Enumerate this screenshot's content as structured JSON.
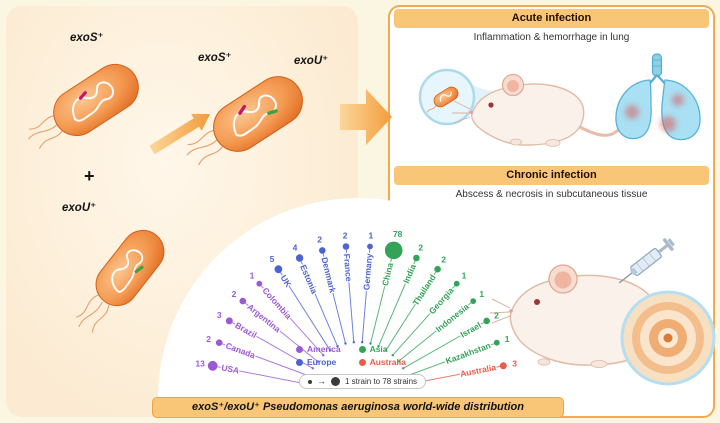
{
  "left_panel": {
    "bact1_label": "exoS⁺",
    "plus_sign": "+",
    "bact2_label": "exoU⁺",
    "merged_label_left": "exoS⁺",
    "merged_label_right": "exoU⁺"
  },
  "right_panel": {
    "acute": {
      "header": "Acute infection",
      "caption": "Inflammation & hemorrhage in lung"
    },
    "chronic": {
      "header": "Chronic infection",
      "caption": "Abscess & necrosis in subcutaneous tissue"
    }
  },
  "distribution": {
    "banner": "exoS⁺/exoU⁺ Pseudomonas aeruginosa world-wide distribution",
    "size_legend": "1 strain to 78 strains"
  },
  "chart_data": {
    "type": "radial-fan",
    "title": "exoS⁺/exoU⁺ Pseudomonas aeruginosa world-wide distribution",
    "size_note": "1 strain to 78 strains",
    "value_range": [
      1,
      78
    ],
    "regions": [
      {
        "name": "America",
        "color": "#9B59D6"
      },
      {
        "name": "Europe",
        "color": "#4C63D2"
      },
      {
        "name": "Asia",
        "color": "#33A457"
      },
      {
        "name": "Australia",
        "color": "#E85C4A"
      }
    ],
    "legend_order": [
      "America",
      "Asia",
      "Europe",
      "Australia"
    ],
    "countries": [
      {
        "name": "USA",
        "region": "America",
        "value": 13
      },
      {
        "name": "Canada",
        "region": "America",
        "value": 2
      },
      {
        "name": "Brazil",
        "region": "America",
        "value": 3
      },
      {
        "name": "Argentina",
        "region": "America",
        "value": 2
      },
      {
        "name": "Colombia",
        "region": "America",
        "value": 1
      },
      {
        "name": "UK",
        "region": "Europe",
        "value": 5
      },
      {
        "name": "Estonia",
        "region": "Europe",
        "value": 4
      },
      {
        "name": "Denmark",
        "region": "Europe",
        "value": 2
      },
      {
        "name": "France",
        "region": "Europe",
        "value": 2
      },
      {
        "name": "Germany",
        "region": "Europe",
        "value": 1
      },
      {
        "name": "China",
        "region": "Asia",
        "value": 78
      },
      {
        "name": "India",
        "region": "Asia",
        "value": 2
      },
      {
        "name": "Thailand",
        "region": "Asia",
        "value": 2
      },
      {
        "name": "Georgia",
        "region": "Asia",
        "value": 1
      },
      {
        "name": "Indonesia",
        "region": "Asia",
        "value": 1
      },
      {
        "name": "Israel",
        "region": "Asia",
        "value": 2
      },
      {
        "name": "Kazakhstan",
        "region": "Asia",
        "value": 1
      },
      {
        "name": "Australia",
        "region": "Australia",
        "value": 3
      }
    ]
  }
}
